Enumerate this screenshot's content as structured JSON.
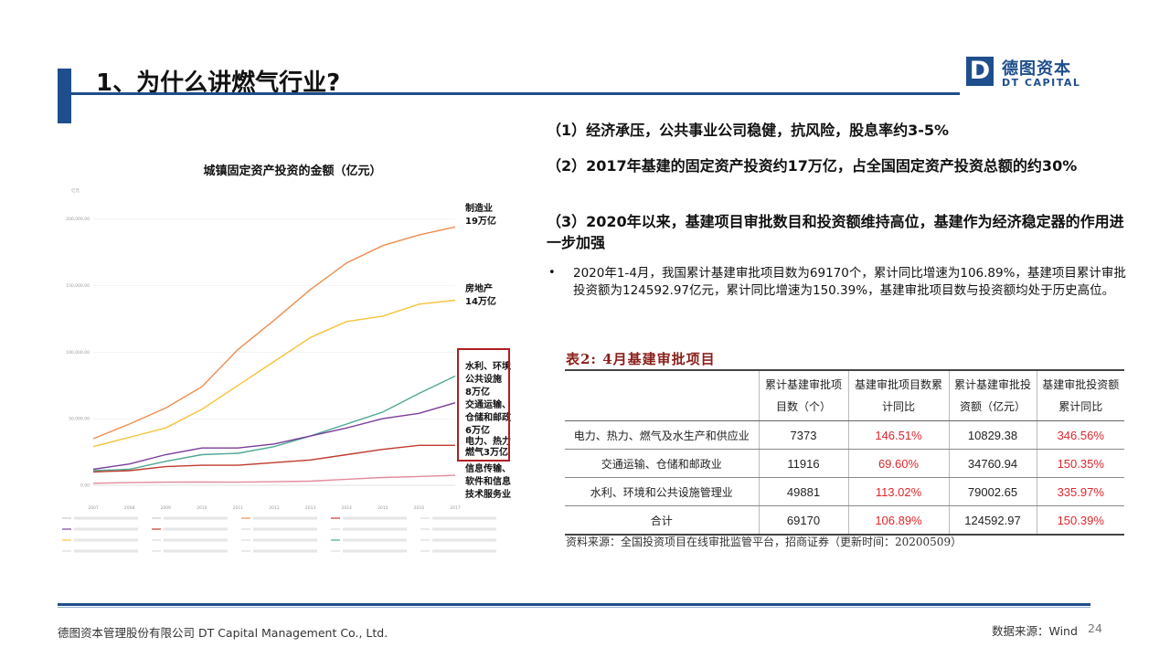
{
  "header": {
    "title": "1、为什么讲燃气行业?",
    "logo_mark": "D",
    "logo_cn": "德图资本",
    "logo_en": "DT CAPITAL"
  },
  "points": {
    "p1": "（1）经济承压，公共事业公司稳健，抗风险，股息率约3-5%",
    "p2": "（2）2017年基建的固定资产投资约17万亿，占全国固定资产投资总额的约30%",
    "p3": "（3）2020年以来，基建项目审批数目和投资额维持高位，基建作为经济稳定器的作用进一步加强",
    "bullet_mark": "•",
    "bullet": "2020年1-4月，我国累计基建审批项目数为69170个，累计同比增速为106.89%，基建项目累计审批投资额为124592.97亿元，累计同比增速为150.39%，基建审批项目数与投资额均处于历史高位。"
  },
  "chart_data": {
    "type": "line",
    "title": "城镇固定资产投资的金额（亿元）",
    "y_unit_label": "亿元",
    "ylim": [
      0,
      210000
    ],
    "yticks": [
      "0.00",
      "50,000.00",
      "100,000.00",
      "150,000.00",
      "200,000.00"
    ],
    "x": [
      "2007",
      "2008",
      "2009",
      "2010",
      "2011",
      "2012",
      "2013",
      "2014",
      "2015",
      "2016",
      "2017"
    ],
    "series": [
      {
        "name": "制造业",
        "color": "#ef8c4f",
        "values": [
          35000,
          46000,
          58000,
          74000,
          102000,
          124000,
          147000,
          167000,
          180000,
          188000,
          194000
        ]
      },
      {
        "name": "房地产",
        "color": "#f6c33a",
        "values": [
          29000,
          36000,
          43000,
          57000,
          75000,
          93000,
          111000,
          123000,
          127000,
          136000,
          139000
        ]
      },
      {
        "name": "水利、环境公共设施",
        "color": "#4ea894",
        "values": [
          11000,
          12000,
          18000,
          23000,
          24000,
          29000,
          37000,
          46000,
          55000,
          69000,
          82000
        ]
      },
      {
        "name": "交通运输、仓储和邮政",
        "color": "#7a3c9a",
        "values": [
          12000,
          16000,
          23000,
          28000,
          28000,
          31000,
          37000,
          43000,
          50000,
          54000,
          62000
        ]
      },
      {
        "name": "电力、热力燃气",
        "color": "#c0392b",
        "values": [
          10000,
          11000,
          14000,
          15000,
          15000,
          17000,
          19000,
          23000,
          27000,
          30000,
          30000
        ]
      },
      {
        "name": "信息传输、软件和信息技术服务业",
        "color": "#e38a9a",
        "values": [
          1500,
          2000,
          2300,
          2400,
          2300,
          2700,
          3100,
          4500,
          5800,
          6600,
          7500
        ]
      }
    ],
    "annotations": [
      "制造业",
      "19万亿",
      "房地产",
      "14万亿",
      "水利、环境",
      "公共设施",
      "8万亿",
      "交通运输、",
      "仓储和邮政",
      "6万亿",
      "电力、热力",
      "燃气3万亿",
      "信息传输、",
      "软件和信息",
      "技术服务业"
    ]
  },
  "table": {
    "caption": "表2: 4月基建审批项目",
    "headers": [
      "",
      "累计基建审批项目数（个）",
      "基建审批项目数累计同比",
      "累计基建审批投资额（亿元）",
      "基建审批投资额累计同比"
    ],
    "rows": [
      {
        "name": "电力、热力、燃气及水生产和供应业",
        "count": "7373",
        "count_yoy": "146.51%",
        "amount": "10829.38",
        "amount_yoy": "346.56%"
      },
      {
        "name": "交通运输、仓储和邮政业",
        "count": "11916",
        "count_yoy": "69.60%",
        "amount": "34760.94",
        "amount_yoy": "150.35%"
      },
      {
        "name": "水利、环境和公共设施管理业",
        "count": "49881",
        "count_yoy": "113.02%",
        "amount": "79002.65",
        "amount_yoy": "335.97%"
      },
      {
        "name": "合计",
        "count": "69170",
        "count_yoy": "106.89%",
        "amount": "124592.97",
        "amount_yoy": "150.39%"
      }
    ],
    "source": "资料来源：全国投资项目在线审批监管平台，招商证券（更新时间：20200509）"
  },
  "footer": {
    "company": "德图资本管理股份有限公司  DT Capital Management Co., Ltd.",
    "source": "数据来源：Wind",
    "page": "24"
  },
  "colors": {
    "brand": "#1f4e8c",
    "highlight": "#b01d22",
    "table_red": "#e0262b"
  }
}
